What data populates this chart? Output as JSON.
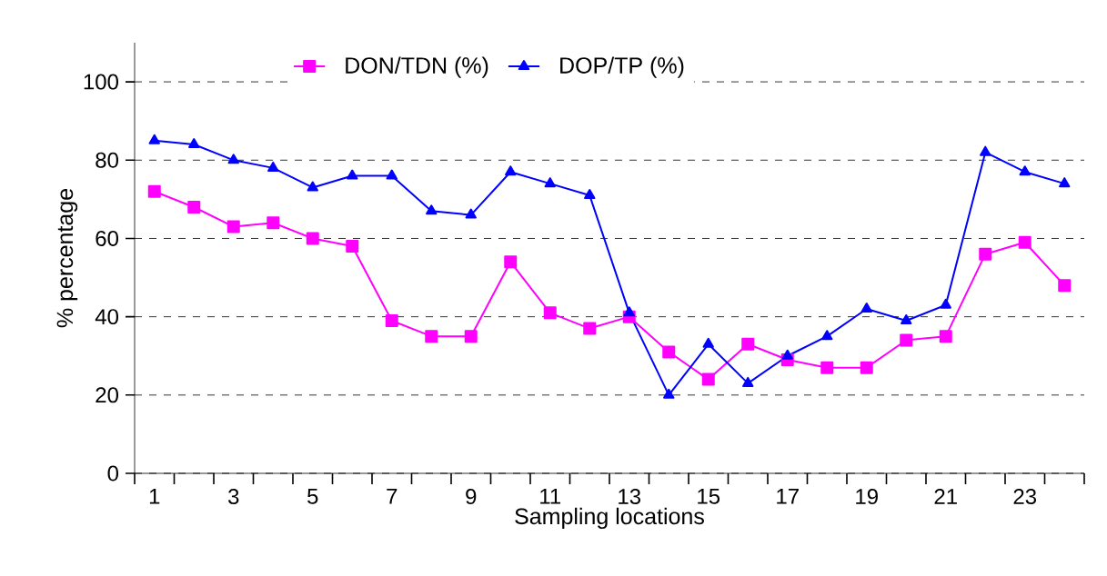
{
  "chart_data": {
    "type": "line",
    "xlabel": "Sampling locations",
    "ylabel": "% percentage",
    "categories": [
      "1",
      null,
      "3",
      null,
      "5",
      null,
      "7",
      null,
      "9",
      null,
      "11",
      null,
      "13",
      null,
      "15",
      null,
      "17",
      null,
      "19",
      null,
      "21",
      null,
      "23",
      null
    ],
    "series": [
      {
        "name": "DON/TDN (%)",
        "color": "#ff00ff",
        "marker": "square",
        "values": [
          72,
          68,
          63,
          64,
          60,
          58,
          39,
          35,
          35,
          54,
          41,
          37,
          40,
          31,
          24,
          33,
          29,
          27,
          27,
          34,
          35,
          56,
          59,
          48
        ]
      },
      {
        "name": "DOP/TP (%)",
        "color": "#0000ff",
        "marker": "triangle",
        "values": [
          85,
          84,
          80,
          78,
          73,
          76,
          76,
          67,
          66,
          77,
          74,
          71,
          41,
          20,
          33,
          23,
          30,
          35,
          42,
          39,
          43,
          82,
          77,
          74
        ]
      }
    ],
    "ylim": [
      0,
      110
    ],
    "yticks": [
      0,
      20,
      40,
      60,
      80,
      100
    ],
    "grid": "y",
    "line_style": "solid",
    "legend": "top"
  }
}
